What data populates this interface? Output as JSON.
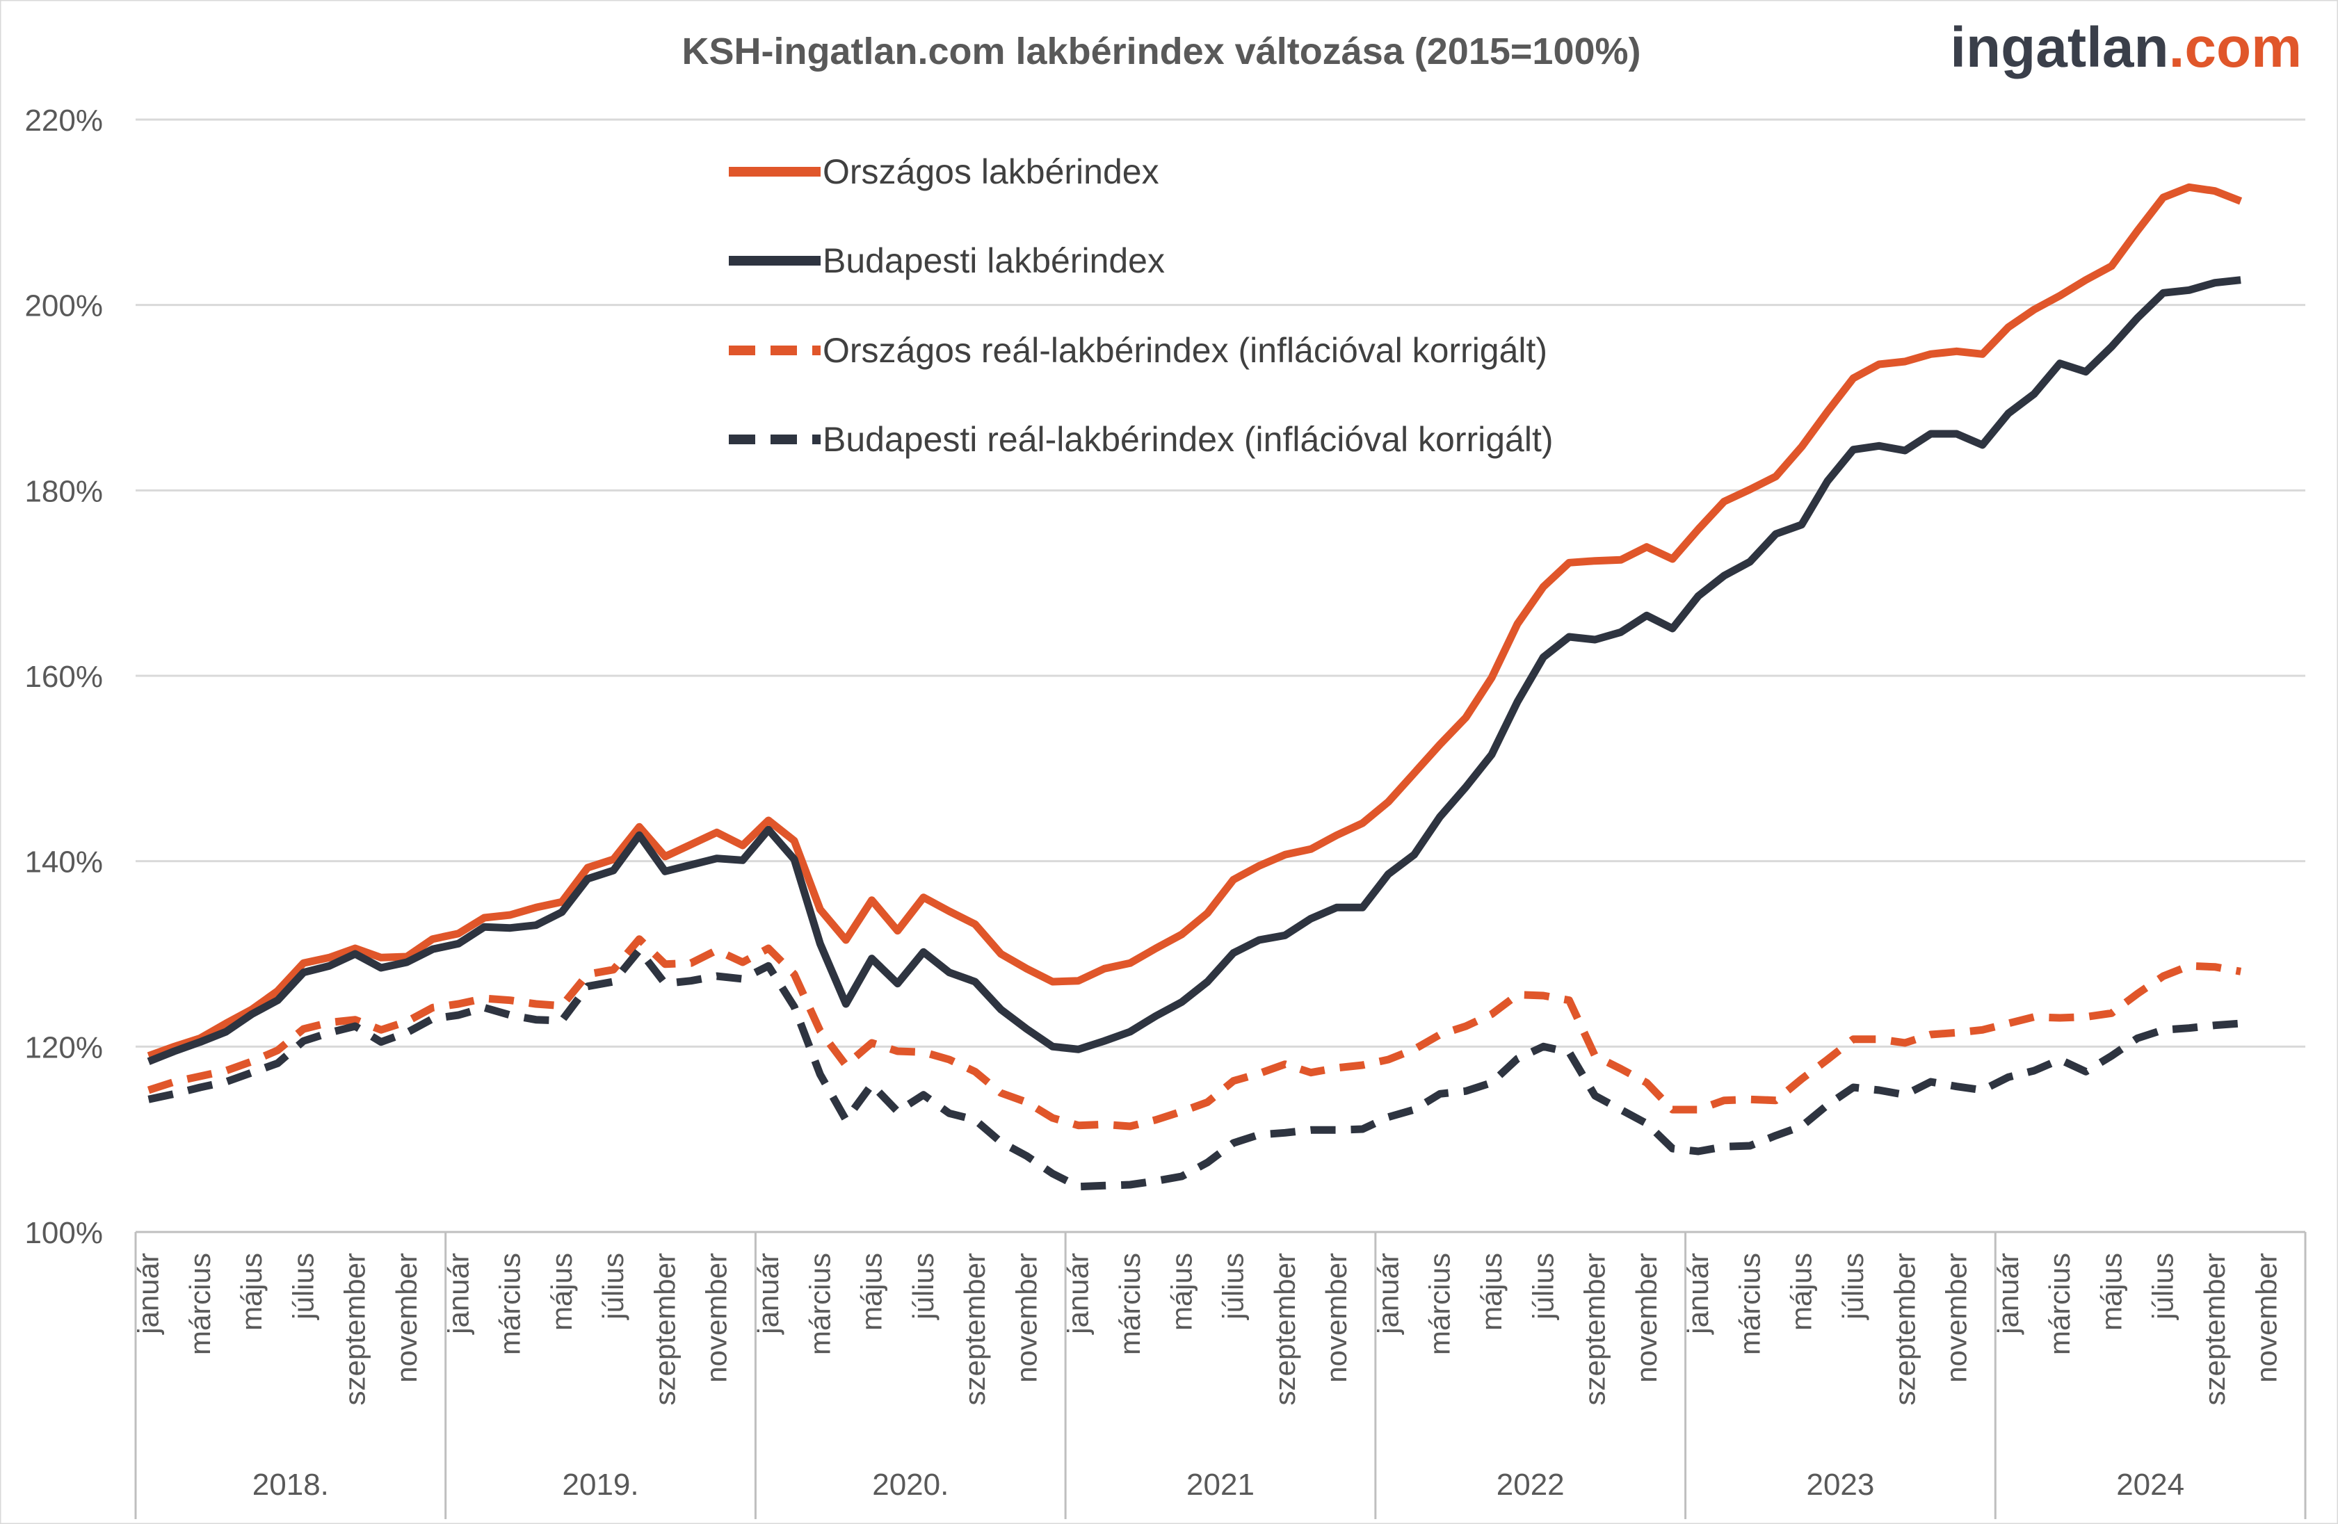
{
  "logo": {
    "main": "ingatlan",
    "accent": ".com"
  },
  "chart_data": {
    "type": "line",
    "title": "KSH-ingatlan.com lakbérindex változása (2015=100%)",
    "ylim": [
      100,
      220
    ],
    "y_ticks": [
      "100%",
      "120%",
      "140%",
      "160%",
      "180%",
      "200%",
      "220%"
    ],
    "grid": true,
    "legend_position": "top-left",
    "month_labels": [
      "január",
      "március",
      "május",
      "július",
      "szeptember",
      "november"
    ],
    "years": [
      "2018.",
      "2019.",
      "2020.",
      "2021",
      "2022",
      "2023",
      "2024"
    ],
    "colors": {
      "orszagos": "#e0562a",
      "budapest": "#2e3440",
      "grid": "#d9d9d9",
      "axis": "#bfbfbf"
    },
    "series": [
      {
        "name": "Országos lakbérindex",
        "style": "solid",
        "color": "#e0562a",
        "values": [
          119,
          120,
          120.9,
          122.5,
          124,
          126,
          129,
          129.6,
          130.6,
          129.6,
          129.7,
          131.6,
          132.2,
          133.9,
          134.2,
          135,
          135.6,
          139.3,
          140.2,
          143.7,
          140.5,
          141.8,
          143.1,
          141.7,
          144.4,
          142.2,
          134.8,
          131.5,
          135.8,
          132.5,
          136.1,
          134.6,
          133.2,
          130,
          128.4,
          127,
          127.1,
          128.4,
          129,
          130.6,
          132.1,
          134.4,
          138,
          139.5,
          140.7,
          141.3,
          142.8,
          144.1,
          146.4,
          149.5,
          152.6,
          155.5,
          159.8,
          165.6,
          169.6,
          172.2,
          172.4,
          172.5,
          173.9,
          172.6,
          175.8,
          178.8,
          180.1,
          181.5,
          184.7,
          188.5,
          192.1,
          193.6,
          193.9,
          194.7,
          195,
          194.7,
          197.6,
          199.5,
          201,
          202.7,
          204.2,
          208,
          211.6,
          212.7,
          212.3,
          211.2
        ]
      },
      {
        "name": "Budapesti lakbérindex",
        "style": "solid",
        "color": "#2e3440",
        "values": [
          118.4,
          119.5,
          120.5,
          121.6,
          123.5,
          125,
          128,
          128.7,
          130,
          128.5,
          129.1,
          130.5,
          131.1,
          132.9,
          132.8,
          133.1,
          134.5,
          138.1,
          139,
          142.8,
          138.9,
          139.6,
          140.3,
          140.1,
          143.4,
          140.2,
          131.1,
          124.6,
          129.5,
          126.8,
          130.2,
          128,
          127,
          124,
          121.9,
          120,
          119.7,
          120.6,
          121.6,
          123.3,
          124.8,
          127,
          130.1,
          131.5,
          132,
          133.8,
          135,
          135,
          138.6,
          140.7,
          144.8,
          148,
          151.5,
          157.2,
          162,
          164.2,
          163.9,
          164.7,
          166.5,
          165.1,
          168.6,
          170.8,
          172.3,
          175.3,
          176.3,
          181,
          184.4,
          184.8,
          184.3,
          186.1,
          186.1,
          184.9,
          188.3,
          190.4,
          193.7,
          192.8,
          195.5,
          198.6,
          201.3,
          201.6,
          202.4,
          202.7
        ]
      },
      {
        "name": "Országos reál-lakbérindex (inflációval korrigált)",
        "style": "dashed",
        "color": "#e0562a",
        "values": [
          115.3,
          116.2,
          116.8,
          117.4,
          118.4,
          119.6,
          121.9,
          122.6,
          122.9,
          121.8,
          122.7,
          124.2,
          124.6,
          125.2,
          125,
          124.6,
          124.4,
          127.8,
          128.3,
          131.6,
          128.9,
          129,
          130.4,
          129.1,
          130.6,
          127.8,
          121.7,
          118,
          120.4,
          119.5,
          119.4,
          118.6,
          117.3,
          115,
          114,
          112.3,
          111.5,
          111.6,
          111.4,
          112.1,
          113,
          114,
          116.3,
          117.1,
          118.1,
          117.2,
          117.7,
          118,
          118.6,
          119.7,
          121.3,
          122.2,
          123.5,
          125.6,
          125.5,
          125,
          119,
          117.6,
          116.1,
          113.2,
          113.2,
          114.2,
          114.3,
          114.2,
          116.5,
          118.6,
          120.8,
          120.8,
          120.4,
          121.3,
          121.5,
          121.8,
          122.5,
          123.2,
          123.1,
          123.2,
          123.6,
          125.7,
          127.6,
          128.7,
          128.6,
          128.1
        ]
      },
      {
        "name": "Budapesti reál-lakbérindex (inflációval korrigált)",
        "style": "dashed",
        "color": "#2e3440",
        "values": [
          114.3,
          114.9,
          115.6,
          116.2,
          117.2,
          118.2,
          120.6,
          121.5,
          122.2,
          120.5,
          121.5,
          123,
          123.4,
          124.2,
          123.4,
          122.9,
          122.8,
          126.5,
          127,
          130.4,
          126.8,
          127.1,
          127.6,
          127.3,
          128.7,
          124.3,
          117,
          112.1,
          115.9,
          113,
          114.8,
          112.8,
          112.1,
          109.7,
          108.2,
          106.3,
          104.9,
          105,
          105.1,
          105.5,
          106,
          107.5,
          109.6,
          110.5,
          110.7,
          111,
          111,
          111.1,
          112.4,
          113.2,
          114.9,
          115.2,
          116.1,
          118.7,
          120,
          119.4,
          114.7,
          113.2,
          111.7,
          109,
          108.7,
          109.2,
          109.3,
          110.4,
          111.4,
          113.7,
          115.6,
          115.3,
          114.8,
          116.2,
          115.7,
          115.3,
          116.7,
          117.4,
          118.6,
          117.3,
          119,
          120.9,
          121.8,
          122,
          122.3,
          122.5
        ]
      }
    ]
  }
}
